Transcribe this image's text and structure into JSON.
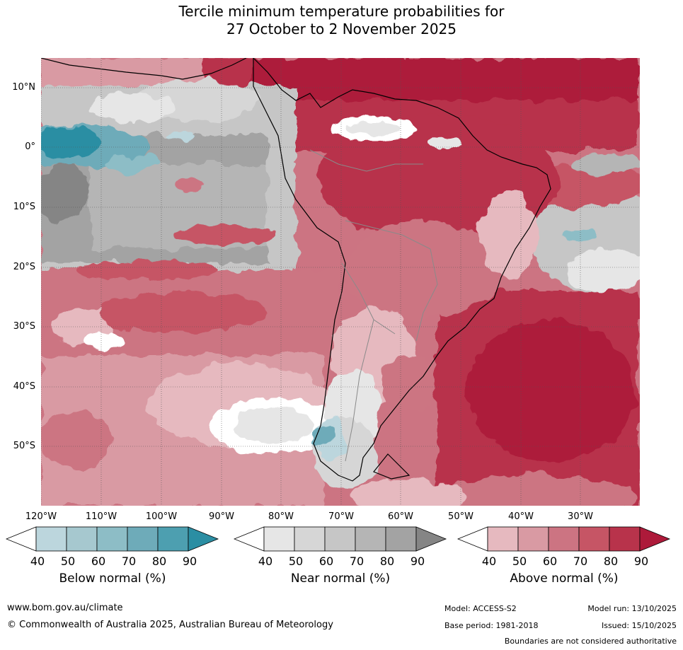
{
  "title": {
    "line1": "Tercile minimum temperature probabilities for",
    "line2": "27 October to 2 November 2025"
  },
  "axes": {
    "latitude_labels": [
      "10°N",
      "0°",
      "10°S",
      "20°S",
      "30°S",
      "40°S",
      "50°S"
    ],
    "longitude_labels": [
      "120°W",
      "110°W",
      "100°W",
      "90°W",
      "80°W",
      "70°W",
      "60°W",
      "50°W",
      "40°W",
      "30°W"
    ]
  },
  "colorbars": [
    {
      "name": "below",
      "title": "Below normal (%)",
      "ticks": [
        "40",
        "50",
        "60",
        "70",
        "80",
        "90"
      ],
      "colors": [
        "#ffffff",
        "#bcd6dd",
        "#a6c8cf",
        "#8dbdc6",
        "#6eabb9",
        "#4d9fb0",
        "#2b8ea3"
      ]
    },
    {
      "name": "near",
      "title": "Near normal (%)",
      "ticks": [
        "40",
        "50",
        "60",
        "70",
        "80",
        "90"
      ],
      "colors": [
        "#ffffff",
        "#e6e6e6",
        "#d6d6d6",
        "#c6c6c6",
        "#b5b5b5",
        "#a3a3a3",
        "#858585"
      ]
    },
    {
      "name": "above",
      "title": "Above normal (%)",
      "ticks": [
        "40",
        "50",
        "60",
        "70",
        "80",
        "90"
      ],
      "colors": [
        "#ffffff",
        "#e6b9bf",
        "#d99aa3",
        "#cc7482",
        "#c65565",
        "#b8334b",
        "#ad1a3a"
      ]
    }
  ],
  "footer": {
    "url": "www.bom.gov.au/climate",
    "copyright": "© Commonwealth of Australia 2025, Australian Bureau of Meteorology",
    "model": "Model: ACCESS-S2",
    "base_period": "Base period: 1981-2018",
    "model_run": "Model run: 13/10/2025",
    "issued": "Issued: 15/10/2025",
    "disclaimer": "Boundaries are not considered authoritative"
  }
}
